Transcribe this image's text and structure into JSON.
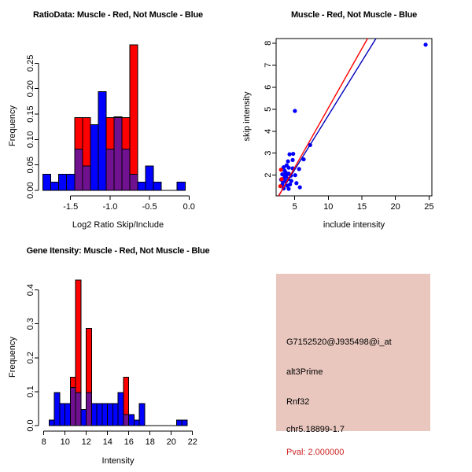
{
  "colors": {
    "bar_blue": "#0000ff",
    "bar_red": "#ff0000",
    "overlap_purple": "#70128f",
    "point_blue": "#0000ff",
    "point_red": "#ff0000",
    "line_red": "#ff0000",
    "line_blue": "#0000bb",
    "axis_black": "#000000",
    "info_box_bg": "#e9c7be",
    "pval_red": "#cc2222"
  },
  "chart_data": [
    {
      "id": "ratio_hist",
      "type": "bar",
      "title": "RatioData: Muscle - Red, Not Muscle - Blue",
      "xlabel": "Log2 Ratio Skip/Include",
      "ylabel": "Frequency",
      "bin_start": -1.85,
      "bin_width": 0.1,
      "series": [
        {
          "name": "Not Muscle (blue)",
          "color_key": "bar_blue",
          "values": [
            0.032,
            0.016,
            0.032,
            0.032,
            0.081,
            0.048,
            0.129,
            0.194,
            0.081,
            0.145,
            0.081,
            0.032,
            0.016,
            0.048,
            0.016,
            0,
            0,
            0.016
          ]
        },
        {
          "name": "Muscle (red)",
          "color_key": "bar_red",
          "values": [
            0,
            0,
            0,
            0,
            0.143,
            0.143,
            0,
            0,
            0.143,
            0.143,
            0.143,
            0.286,
            0,
            0,
            0,
            0,
            0,
            0
          ]
        }
      ],
      "xticks": [
        -1.5,
        -1.0,
        -0.5,
        0.0
      ],
      "xtick_labels": [
        "-1.5",
        "-1.0",
        "-0.5",
        "0.0"
      ],
      "yticks": [
        0,
        0.05,
        0.1,
        0.15,
        0.2,
        0.25
      ],
      "ytick_labels": [
        "0.00",
        "0.05",
        "0.10",
        "0.15",
        "0.20",
        "0.25"
      ],
      "xlim": [
        -1.906,
        0.047
      ],
      "ylim": [
        0,
        0.297
      ],
      "grid": false,
      "legend": "encoded in title colors"
    },
    {
      "id": "scatter",
      "type": "scatter",
      "title": "Muscle - Red, Not Muscle - Blue",
      "xlabel": "include intensity",
      "ylabel": "skip intensity",
      "blue_points": [
        [
          4.23,
          2.95
        ],
        [
          4.77,
          2.97
        ],
        [
          4.7,
          2.69
        ],
        [
          4.0,
          2.63
        ],
        [
          3.8,
          2.45
        ],
        [
          3.35,
          2.36
        ],
        [
          4.1,
          2.34
        ],
        [
          4.7,
          2.31
        ],
        [
          5.65,
          2.28
        ],
        [
          3.5,
          2.2
        ],
        [
          3.66,
          2.12
        ],
        [
          4.1,
          2.07
        ],
        [
          3.15,
          2.04
        ],
        [
          5.07,
          2.0
        ],
        [
          3.74,
          1.98
        ],
        [
          4.43,
          1.98
        ],
        [
          3.55,
          1.95
        ],
        [
          3.43,
          1.86
        ],
        [
          4.04,
          1.83
        ],
        [
          2.97,
          1.8
        ],
        [
          3.66,
          1.71
        ],
        [
          4.49,
          1.74
        ],
        [
          3.25,
          1.68
        ],
        [
          5.26,
          1.64
        ],
        [
          4.3,
          1.58
        ],
        [
          3.15,
          1.56
        ],
        [
          3.9,
          1.52
        ],
        [
          5.77,
          1.45
        ],
        [
          3.35,
          1.4
        ],
        [
          4.1,
          1.38
        ],
        [
          5.03,
          4.92
        ],
        [
          7.3,
          3.37
        ],
        [
          6.33,
          2.72
        ],
        [
          24.5,
          7.93
        ]
      ],
      "red_points": [
        [
          2.85,
          1.5
        ],
        [
          3.05,
          1.82
        ],
        [
          2.95,
          2.25
        ]
      ],
      "red_line": {
        "x1": 2.62,
        "y1": 1.06,
        "x2": 15.85,
        "y2": 8.21
      },
      "blue_line": {
        "x1": 2.58,
        "y1": 1.06,
        "x2": 17.1,
        "y2": 8.21
      },
      "xticks": [
        5,
        10,
        15,
        20,
        25
      ],
      "xtick_labels": [
        "5",
        "10",
        "15",
        "20",
        "25"
      ],
      "yticks": [
        2,
        3,
        4,
        5,
        6,
        7,
        8
      ],
      "ytick_labels": [
        "2",
        "3",
        "4",
        "5",
        "6",
        "7",
        "8"
      ],
      "xlim": [
        2.23,
        25.43
      ],
      "ylim": [
        1.06,
        8.21
      ],
      "grid": false
    },
    {
      "id": "gene_hist",
      "type": "bar",
      "title": "Gene Itensity: Muscle - Red, Not Muscle - Blue",
      "xlabel": "Intensity",
      "ylabel": "Frequency",
      "bin_start": 8.5,
      "bin_width": 0.5,
      "series": [
        {
          "name": "Not Muscle (blue)",
          "color_key": "bar_blue",
          "values": [
            0.016,
            0.097,
            0.065,
            0.065,
            0.113,
            0.097,
            0.048,
            0.097,
            0.065,
            0.065,
            0.065,
            0.065,
            0.065,
            0.097,
            0.032,
            0.032,
            0.016,
            0.065,
            0,
            0,
            0,
            0,
            0,
            0,
            0.016,
            0.016
          ]
        },
        {
          "name": "Muscle (red)",
          "color_key": "bar_red",
          "values": [
            0,
            0,
            0,
            0,
            0.143,
            0.429,
            0,
            0.286,
            0,
            0,
            0,
            0,
            0,
            0,
            0.143,
            0,
            0,
            0,
            0,
            0,
            0,
            0,
            0,
            0,
            0,
            0
          ]
        }
      ],
      "xticks": [
        8,
        10,
        12,
        14,
        16,
        18,
        20,
        22
      ],
      "xtick_labels": [
        "8",
        "10",
        "12",
        "14",
        "16",
        "18",
        "20",
        "22"
      ],
      "yticks": [
        0,
        0.1,
        0.2,
        0.3,
        0.4
      ],
      "ytick_labels": [
        "0.0",
        "0.1",
        "0.2",
        "0.3",
        "0.4"
      ],
      "xlim": [
        7.5,
        22.17
      ],
      "ylim": [
        0,
        0.4315
      ],
      "grid": false
    }
  ],
  "info_box": {
    "probe": "G7152520@J935498@i_at",
    "splice_type": "alt3Prime",
    "gene": "Rnf32",
    "location": "chr5.18899-1.7",
    "pval": "Pval: 2.000000"
  }
}
